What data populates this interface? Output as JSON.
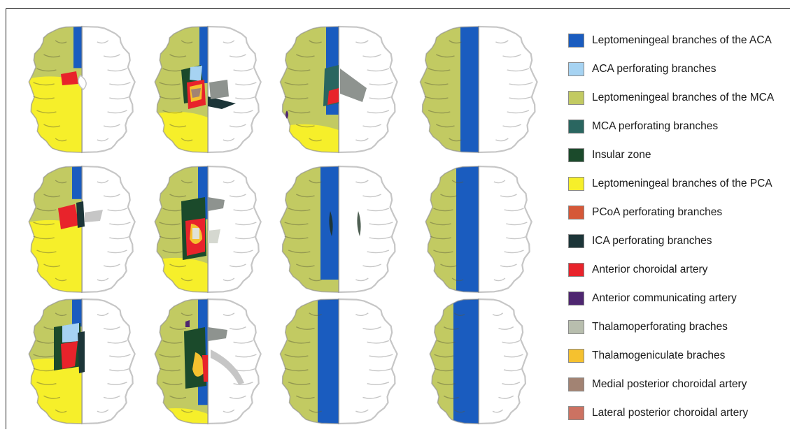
{
  "figure": {
    "colors": {
      "outline": "#8f8f8f",
      "outline_light": "#c6c6c6",
      "ventricle_gray": "#8e938f",
      "background": "#ffffff"
    }
  },
  "legend": {
    "items": [
      {
        "label": "Leptomeningeal branches of the ACA",
        "color": "#1a5cbf"
      },
      {
        "label": "ACA perforating branches",
        "color": "#a6d3f2"
      },
      {
        "label": "Leptomeningeal branches of the MCA",
        "color": "#c2ca62"
      },
      {
        "label": "MCA perforating branches",
        "color": "#2a6660"
      },
      {
        "label": "Insular zone",
        "color": "#1b4a2b"
      },
      {
        "label": "Leptomeningeal branches of the PCA",
        "color": "#f6ef2a"
      },
      {
        "label": "PCoA perforating branches",
        "color": "#d55838"
      },
      {
        "label": "ICA perforating branches",
        "color": "#1c3538"
      },
      {
        "label": "Anterior choroidal artery",
        "color": "#e8232b"
      },
      {
        "label": "Anterior communicating artery",
        "color": "#4e2670"
      },
      {
        "label": "Thalamoperforating braches",
        "color": "#b8beae"
      },
      {
        "label": "Thalamogeniculate braches",
        "color": "#f5c12f"
      },
      {
        "label": "Medial posterior choroidal artery",
        "color": "#a28373"
      },
      {
        "label": "Lateral posterior choroidal artery",
        "color": "#cc7262"
      }
    ]
  }
}
